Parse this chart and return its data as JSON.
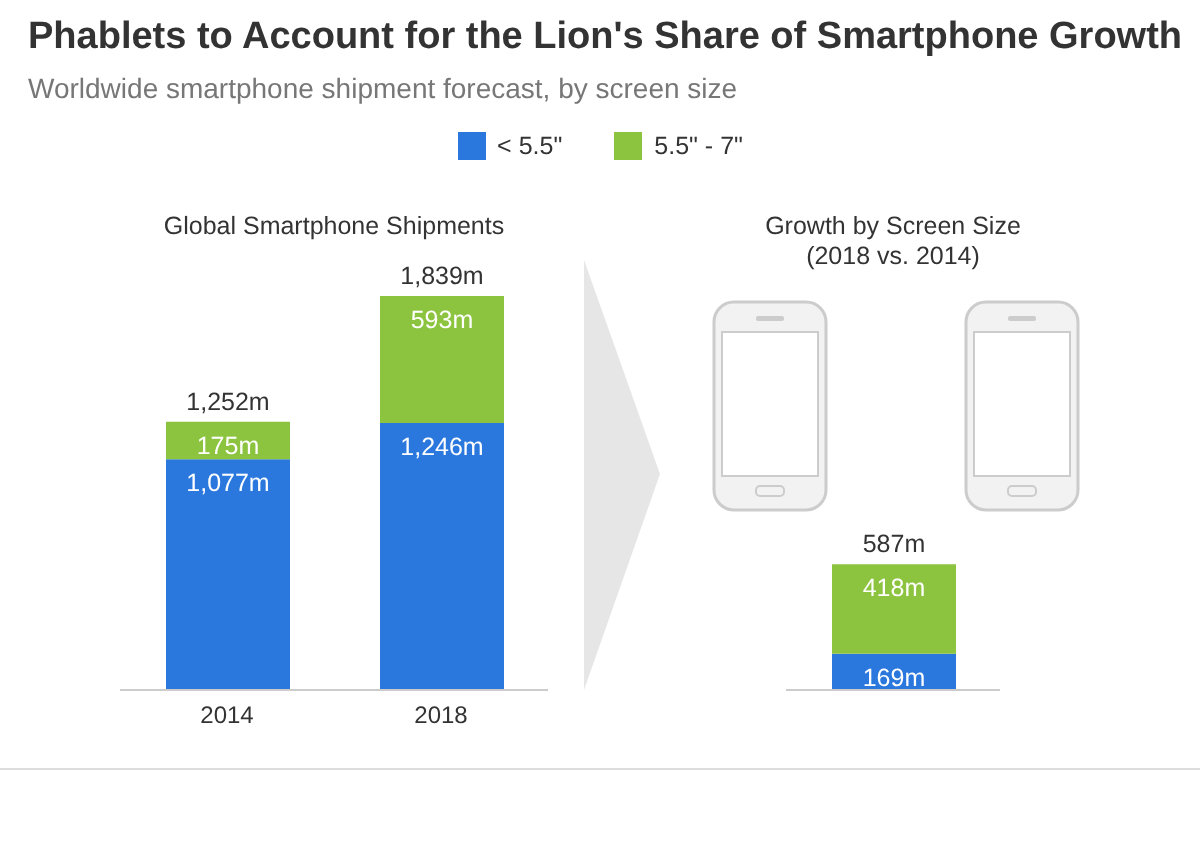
{
  "chart_data": [
    {
      "type": "bar",
      "title": "Phablets to Account for the Lion's Share of Smartphone Growth",
      "subtitle": "Worldwide smartphone shipment forecast, by screen size",
      "xlabel": "Global Smartphone Shipments",
      "categories": [
        "2014",
        "2018"
      ],
      "stacked": true,
      "legend": "top",
      "series": [
        {
          "name": "< 5.5\"",
          "color": "#2a78de",
          "values": [
            1077,
            1246
          ],
          "value_labels": [
            "1,077m",
            "1,246m"
          ]
        },
        {
          "name": "5.5\" - 7\"",
          "color": "#8cc43f",
          "values": [
            175,
            593
          ],
          "value_labels": [
            "175m",
            "593m"
          ]
        }
      ],
      "totals": [
        "1,252m",
        "1,839m"
      ]
    },
    {
      "type": "bar",
      "title": "Growth by Screen Size\n(2018 vs. 2014)",
      "categories": [
        null
      ],
      "stacked": true,
      "series": [
        {
          "color": "#2a78de",
          "values": [
            169
          ],
          "value_labels": [
            "169m"
          ]
        },
        {
          "color": "#8cc43f",
          "values": [
            418
          ],
          "value_labels": [
            "418m"
          ]
        }
      ],
      "totals": [
        "587m"
      ]
    }
  ]
}
